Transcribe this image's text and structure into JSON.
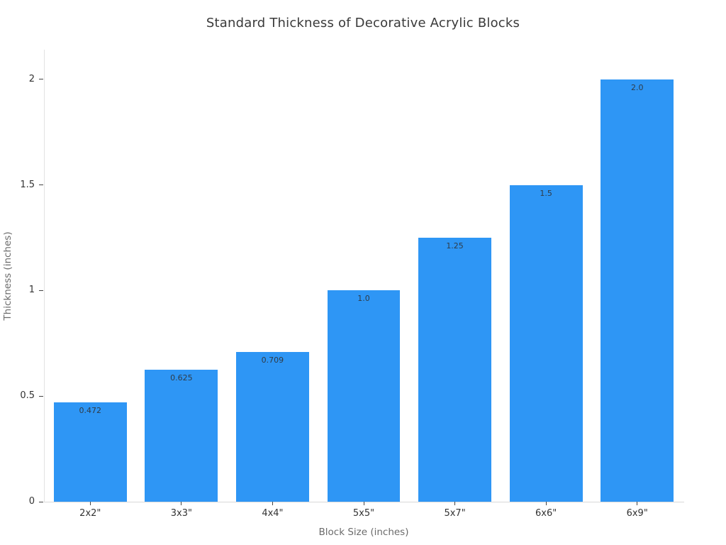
{
  "chart_data": {
    "type": "bar",
    "title": "Standard Thickness of Decorative Acrylic Blocks",
    "xlabel": "Block Size (inches)",
    "ylabel": "Thickness (inches)",
    "categories": [
      "2x2\"",
      "3x3\"",
      "4x4\"",
      "5x5\"",
      "5x7\"",
      "6x6\"",
      "6x9\""
    ],
    "values": [
      0.472,
      0.625,
      0.709,
      1.0,
      1.25,
      1.5,
      2.0
    ],
    "bar_labels": [
      "0.472",
      "0.625",
      "0.709",
      "1.0",
      "1.25",
      "1.5",
      "2.0"
    ],
    "y_ticks": [
      0,
      0.5,
      1,
      1.5,
      2
    ],
    "y_tick_labels": [
      "0",
      "0.5",
      "1",
      "1.5",
      "2"
    ],
    "ylim": [
      0,
      2.14
    ],
    "grid": false,
    "legend": false,
    "bar_gap_fraction": 0.2,
    "colors": {
      "bar": "#2e96f5",
      "title_text": "#3a3a3a",
      "tick_text": "#333333",
      "tick_mark": "#444444",
      "axis_title_text": "#6b6b6b",
      "bar_label_text": "#2f3b47",
      "y_axis_line": "#e2e2e2",
      "x_axis_line": "#d9d9d9",
      "background": "#ffffff"
    }
  }
}
